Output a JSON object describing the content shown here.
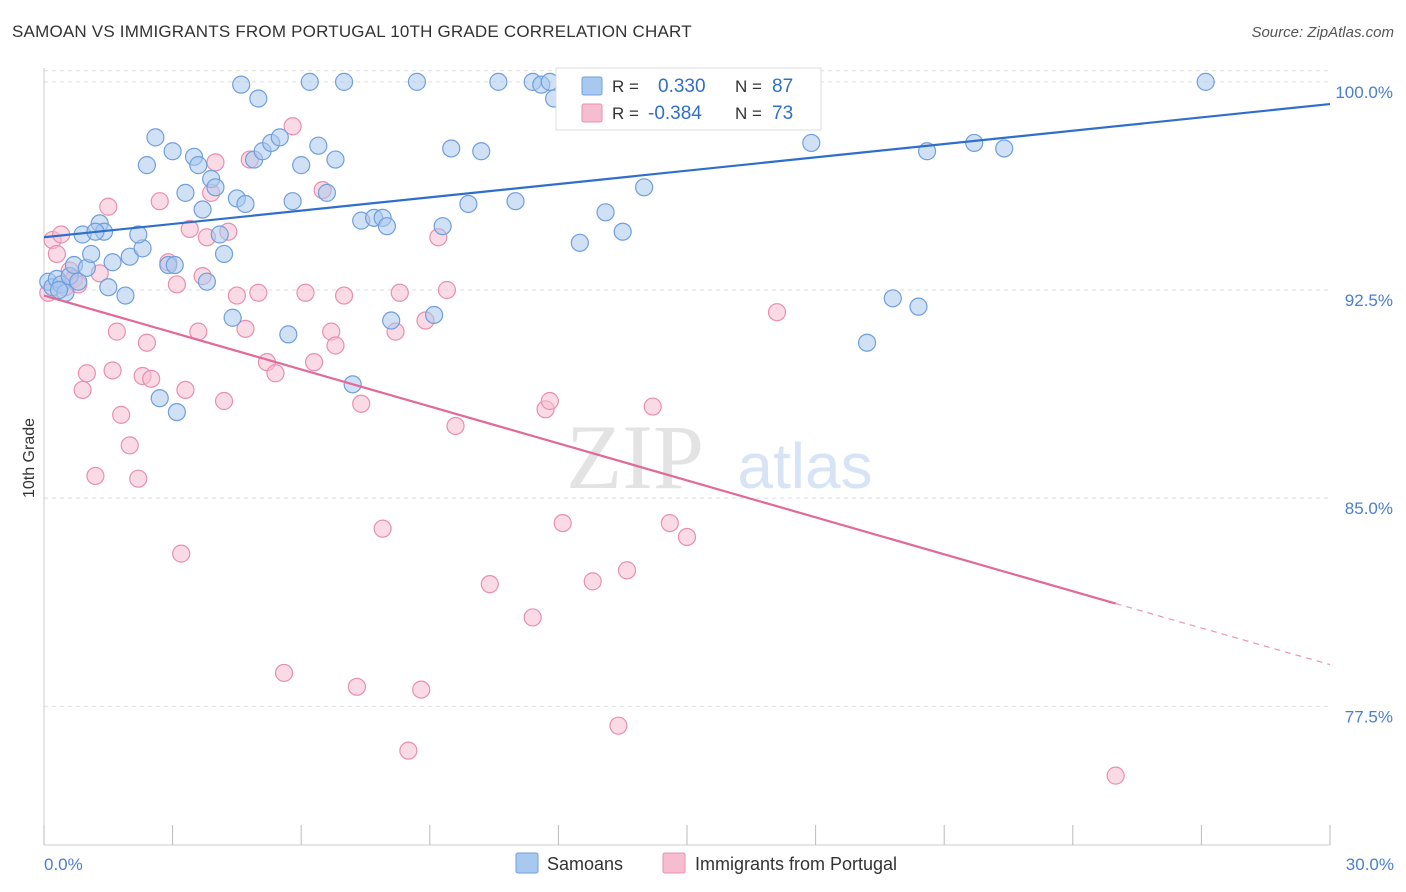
{
  "title": "SAMOAN VS IMMIGRANTS FROM PORTUGAL 10TH GRADE CORRELATION CHART",
  "source": "Source: ZipAtlas.com",
  "watermark": {
    "part1": "ZIP",
    "part2": "atlas"
  },
  "colors": {
    "samoans_fill": "#a9c8ef",
    "samoans_stroke": "#6f9fdc",
    "samoans_line": "#2f6fcb",
    "portugal_fill": "#f6bdd0",
    "portugal_stroke": "#e98fae",
    "portugal_line": "#e06a98",
    "tick_label": "#4a7fcf",
    "grid": "#dddddd"
  },
  "legend": {
    "r_label": "R =",
    "n_label": "N =",
    "items": [
      {
        "r": "0.330",
        "n": "87"
      },
      {
        "r": "-0.384",
        "n": "73"
      }
    ]
  },
  "bottom_legend": [
    "Samoans",
    "Immigrants from Portugal"
  ],
  "chart_data": {
    "type": "scatter",
    "title": "SAMOAN VS IMMIGRANTS FROM PORTUGAL 10TH GRADE CORRELATION CHART",
    "xlabel": "",
    "ylabel": "10th Grade",
    "xlim": [
      0,
      30
    ],
    "ylim": [
      72.5,
      100.5
    ],
    "x_tick_labels": [
      "0.0%",
      "30.0%"
    ],
    "y_ticks": [
      77.5,
      85.0,
      92.5,
      100.0
    ],
    "y_tick_labels": [
      "77.5%",
      "85.0%",
      "92.5%",
      "100.0%"
    ],
    "grid": true,
    "legend_position": "top-center",
    "series": [
      {
        "name": "Samoans",
        "r": 0.33,
        "n": 87,
        "trend": {
          "x": [
            0,
            30
          ],
          "y": [
            94.4,
            99.2
          ]
        },
        "points": [
          [
            0.1,
            92.8
          ],
          [
            0.2,
            92.6
          ],
          [
            0.3,
            92.9
          ],
          [
            0.4,
            92.7
          ],
          [
            0.5,
            92.4
          ],
          [
            0.6,
            93.0
          ],
          [
            0.7,
            93.4
          ],
          [
            0.8,
            92.8
          ],
          [
            0.9,
            94.5
          ],
          [
            1.0,
            93.3
          ],
          [
            1.1,
            93.8
          ],
          [
            1.3,
            94.9
          ],
          [
            1.4,
            94.6
          ],
          [
            1.5,
            92.6
          ],
          [
            1.6,
            93.5
          ],
          [
            1.9,
            92.3
          ],
          [
            2.0,
            93.7
          ],
          [
            2.3,
            94.0
          ],
          [
            2.2,
            94.5
          ],
          [
            2.4,
            97.0
          ],
          [
            2.6,
            98.0
          ],
          [
            2.7,
            88.6
          ],
          [
            2.9,
            93.4
          ],
          [
            3.0,
            97.5
          ],
          [
            3.1,
            88.1
          ],
          [
            3.3,
            96.0
          ],
          [
            3.5,
            97.3
          ],
          [
            3.6,
            97.0
          ],
          [
            3.7,
            95.4
          ],
          [
            3.8,
            92.8
          ],
          [
            3.9,
            96.5
          ],
          [
            4.0,
            96.2
          ],
          [
            4.1,
            94.5
          ],
          [
            4.2,
            93.8
          ],
          [
            4.4,
            91.5
          ],
          [
            4.5,
            95.8
          ],
          [
            4.6,
            99.9
          ],
          [
            4.7,
            95.6
          ],
          [
            4.9,
            97.2
          ],
          [
            5.0,
            99.4
          ],
          [
            5.1,
            97.5
          ],
          [
            5.3,
            97.8
          ],
          [
            5.5,
            98.0
          ],
          [
            5.7,
            90.9
          ],
          [
            5.8,
            95.7
          ],
          [
            6.0,
            97.0
          ],
          [
            6.2,
            100.0
          ],
          [
            6.4,
            97.7
          ],
          [
            6.6,
            96.0
          ],
          [
            6.8,
            97.2
          ],
          [
            7.0,
            100.0
          ],
          [
            7.2,
            89.1
          ],
          [
            7.4,
            95.0
          ],
          [
            7.7,
            95.1
          ],
          [
            7.9,
            95.1
          ],
          [
            8.0,
            94.8
          ],
          [
            8.1,
            91.4
          ],
          [
            8.7,
            100.0
          ],
          [
            9.1,
            91.6
          ],
          [
            9.3,
            94.8
          ],
          [
            9.5,
            97.6
          ],
          [
            9.9,
            95.6
          ],
          [
            10.2,
            97.5
          ],
          [
            10.6,
            100.0
          ],
          [
            11.0,
            95.7
          ],
          [
            11.4,
            100.0
          ],
          [
            11.6,
            99.9
          ],
          [
            11.8,
            100.0
          ],
          [
            11.9,
            99.4
          ],
          [
            12.3,
            99.2
          ],
          [
            12.5,
            94.2
          ],
          [
            13.1,
            95.3
          ],
          [
            13.5,
            94.6
          ],
          [
            14.0,
            96.2
          ],
          [
            14.7,
            100.0
          ],
          [
            16.0,
            100.0
          ],
          [
            17.9,
            97.8
          ],
          [
            19.2,
            90.6
          ],
          [
            19.8,
            92.2
          ],
          [
            20.4,
            91.9
          ],
          [
            20.6,
            97.5
          ],
          [
            21.7,
            97.8
          ],
          [
            22.4,
            97.6
          ],
          [
            27.1,
            100.0
          ],
          [
            0.35,
            92.5
          ],
          [
            1.2,
            94.6
          ],
          [
            3.05,
            93.4
          ]
        ]
      },
      {
        "name": "Immigrants from Portugal",
        "r": -0.384,
        "n": 73,
        "trend": {
          "x": [
            0,
            25
          ],
          "y": [
            92.3,
            81.2
          ]
        },
        "trend_dashed": {
          "x": [
            25,
            30
          ],
          "y": [
            81.2,
            79.0
          ]
        },
        "points": [
          [
            0.1,
            92.4
          ],
          [
            0.2,
            94.3
          ],
          [
            0.3,
            93.8
          ],
          [
            0.4,
            94.5
          ],
          [
            0.5,
            92.6
          ],
          [
            0.6,
            93.2
          ],
          [
            0.7,
            92.9
          ],
          [
            0.8,
            92.7
          ],
          [
            0.9,
            88.9
          ],
          [
            1.0,
            89.5
          ],
          [
            1.2,
            85.8
          ],
          [
            1.3,
            93.1
          ],
          [
            1.5,
            95.5
          ],
          [
            1.6,
            89.6
          ],
          [
            1.7,
            91.0
          ],
          [
            1.8,
            88.0
          ],
          [
            2.0,
            86.9
          ],
          [
            2.2,
            85.7
          ],
          [
            2.3,
            89.4
          ],
          [
            2.4,
            90.6
          ],
          [
            2.5,
            89.3
          ],
          [
            2.7,
            95.7
          ],
          [
            2.9,
            93.5
          ],
          [
            3.1,
            92.7
          ],
          [
            3.2,
            83.0
          ],
          [
            3.3,
            88.9
          ],
          [
            3.4,
            94.7
          ],
          [
            3.6,
            91.0
          ],
          [
            3.7,
            93.0
          ],
          [
            3.8,
            94.4
          ],
          [
            3.9,
            96.0
          ],
          [
            4.0,
            97.1
          ],
          [
            4.2,
            88.5
          ],
          [
            4.3,
            94.6
          ],
          [
            4.5,
            92.3
          ],
          [
            4.7,
            91.1
          ],
          [
            4.8,
            97.2
          ],
          [
            5.0,
            92.4
          ],
          [
            5.2,
            89.9
          ],
          [
            5.4,
            89.5
          ],
          [
            5.6,
            78.7
          ],
          [
            5.8,
            98.4
          ],
          [
            6.1,
            92.4
          ],
          [
            6.3,
            89.9
          ],
          [
            6.5,
            96.1
          ],
          [
            6.7,
            91.0
          ],
          [
            6.8,
            90.5
          ],
          [
            7.0,
            92.3
          ],
          [
            7.3,
            78.2
          ],
          [
            7.4,
            88.4
          ],
          [
            7.9,
            83.9
          ],
          [
            8.2,
            91.0
          ],
          [
            8.3,
            92.4
          ],
          [
            8.5,
            75.9
          ],
          [
            8.8,
            78.1
          ],
          [
            8.9,
            91.4
          ],
          [
            9.2,
            94.4
          ],
          [
            9.4,
            92.5
          ],
          [
            9.6,
            87.6
          ],
          [
            10.4,
            81.9
          ],
          [
            11.4,
            80.7
          ],
          [
            11.7,
            88.2
          ],
          [
            11.8,
            88.5
          ],
          [
            12.1,
            84.1
          ],
          [
            12.8,
            82.0
          ],
          [
            13.4,
            76.8
          ],
          [
            13.6,
            82.4
          ],
          [
            14.2,
            88.3
          ],
          [
            14.6,
            84.1
          ],
          [
            15.0,
            83.6
          ],
          [
            17.1,
            91.7
          ],
          [
            25.0,
            75.0
          ],
          [
            16.8,
            100.0
          ]
        ]
      }
    ]
  }
}
